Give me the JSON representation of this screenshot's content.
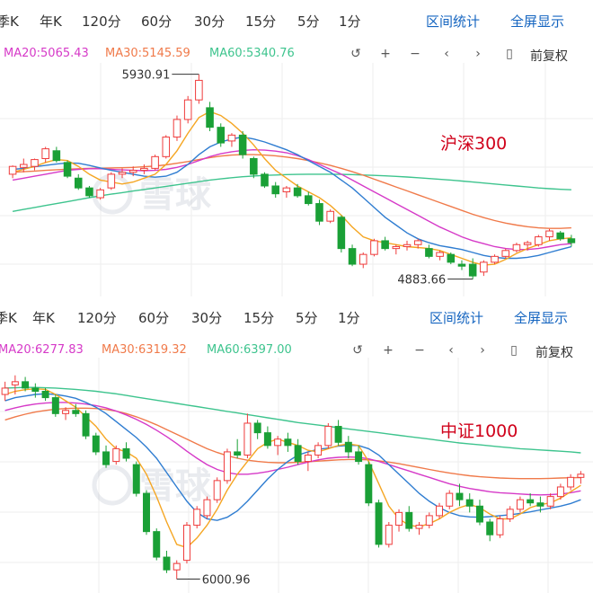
{
  "tabs": [
    "季K",
    "年K",
    "120分",
    "60分",
    "30分",
    "15分",
    "5分",
    "1分"
  ],
  "tools": {
    "range_stats": "区间统计",
    "fullscreen": "全屏显示"
  },
  "controls": {
    "reset_icon": "undo-arrow-icon",
    "zoom_in_icon": "plus-icon",
    "zoom_out_icon": "minus-icon",
    "prev_icon": "chevron-left-icon",
    "next_icon": "chevron-right-icon",
    "candle_icon": "candlestick-icon",
    "adjust_label": "前复权"
  },
  "watermark": "雪球",
  "colors": {
    "up": "#ef3b3b",
    "down": "#1aa036",
    "ma5": "#f5a623",
    "ma10": "#2f7dd1",
    "ma20": "#d63ac8",
    "ma30": "#f07a4a",
    "ma60": "#3ec48e",
    "tab_link": "#1565c0"
  },
  "panels": [
    {
      "ma": {
        "ma20": "MA20:5065.43",
        "ma30": "MA30:5145.59",
        "ma60": "MA60:5340.76"
      },
      "index_label": "沪深300",
      "high_label": "5930.91",
      "low_label": "4883.66"
    },
    {
      "ma": {
        "ma20": "MA20:6277.83",
        "ma30": "MA30:6319.32",
        "ma60": "MA60:6397.00"
      },
      "index_label": "中证1000",
      "low_label": "6000.96"
    }
  ],
  "chart_data": [
    {
      "type": "candlestick",
      "title": "沪深300",
      "y_unit": "index points",
      "high": 5930.91,
      "low": 4883.66,
      "ohlc": [
        [
          5420,
          5465,
          5400,
          5460
        ],
        [
          5455,
          5500,
          5430,
          5470
        ],
        [
          5460,
          5500,
          5440,
          5495
        ],
        [
          5500,
          5560,
          5480,
          5550
        ],
        [
          5540,
          5560,
          5480,
          5490
        ],
        [
          5480,
          5490,
          5400,
          5410
        ],
        [
          5400,
          5420,
          5340,
          5350
        ],
        [
          5350,
          5360,
          5300,
          5310
        ],
        [
          5300,
          5350,
          5290,
          5340
        ],
        [
          5350,
          5430,
          5340,
          5420
        ],
        [
          5420,
          5450,
          5400,
          5430
        ],
        [
          5430,
          5460,
          5410,
          5440
        ],
        [
          5440,
          5470,
          5420,
          5450
        ],
        [
          5450,
          5520,
          5440,
          5510
        ],
        [
          5510,
          5620,
          5500,
          5610
        ],
        [
          5610,
          5720,
          5590,
          5700
        ],
        [
          5700,
          5820,
          5680,
          5800
        ],
        [
          5800,
          5930.91,
          5780,
          5900
        ],
        [
          5760,
          5790,
          5640,
          5660
        ],
        [
          5660,
          5680,
          5560,
          5580
        ],
        [
          5590,
          5630,
          5560,
          5620
        ],
        [
          5620,
          5640,
          5500,
          5520
        ],
        [
          5500,
          5510,
          5400,
          5420
        ],
        [
          5420,
          5430,
          5350,
          5360
        ],
        [
          5360,
          5380,
          5300,
          5320
        ],
        [
          5330,
          5360,
          5300,
          5350
        ],
        [
          5350,
          5370,
          5300,
          5310
        ],
        [
          5310,
          5330,
          5260,
          5270
        ],
        [
          5270,
          5290,
          5160,
          5180
        ],
        [
          5180,
          5240,
          5170,
          5230
        ],
        [
          5200,
          5210,
          5020,
          5040
        ],
        [
          5040,
          5060,
          4950,
          4960
        ],
        [
          4960,
          5020,
          4940,
          5010
        ],
        [
          5010,
          5090,
          5000,
          5080
        ],
        [
          5080,
          5100,
          5030,
          5040
        ],
        [
          5040,
          5060,
          5010,
          5050
        ],
        [
          5050,
          5080,
          5030,
          5060
        ],
        [
          5060,
          5090,
          5040,
          5080
        ],
        [
          5040,
          5060,
          4990,
          5000
        ],
        [
          5000,
          5030,
          4980,
          5020
        ],
        [
          5010,
          5020,
          4960,
          4970
        ],
        [
          4960,
          4980,
          4930,
          4950
        ],
        [
          4960,
          4990,
          4883.66,
          4900
        ],
        [
          4920,
          4980,
          4900,
          4970
        ],
        [
          4970,
          5010,
          4960,
          5000
        ],
        [
          5000,
          5040,
          4990,
          5030
        ],
        [
          5030,
          5070,
          5020,
          5060
        ],
        [
          5060,
          5080,
          5030,
          5070
        ],
        [
          5060,
          5110,
          5050,
          5100
        ],
        [
          5100,
          5140,
          5080,
          5130
        ],
        [
          5120,
          5130,
          5080,
          5090
        ],
        [
          5090,
          5110,
          5050,
          5070
        ]
      ],
      "ma5": [
        5430,
        5445,
        5460,
        5480,
        5495,
        5490,
        5460,
        5420,
        5390,
        5380,
        5370,
        5380,
        5400,
        5420,
        5470,
        5540,
        5630,
        5710,
        5740,
        5720,
        5680,
        5630,
        5570,
        5500,
        5440,
        5400,
        5360,
        5330,
        5300,
        5260,
        5210,
        5150,
        5100,
        5080,
        5070,
        5060,
        5050,
        5045,
        5040,
        5030,
        5010,
        4990,
        4970,
        4955,
        4960,
        4985,
        5015,
        5040,
        5060,
        5080,
        5090,
        5095
      ],
      "ma10": [
        5445,
        5450,
        5458,
        5465,
        5472,
        5478,
        5476,
        5465,
        5452,
        5440,
        5430,
        5420,
        5410,
        5405,
        5410,
        5430,
        5470,
        5520,
        5560,
        5585,
        5600,
        5610,
        5600,
        5585,
        5565,
        5545,
        5520,
        5490,
        5460,
        5430,
        5390,
        5350,
        5300,
        5250,
        5200,
        5160,
        5120,
        5090,
        5070,
        5055,
        5045,
        5035,
        5020,
        5005,
        4995,
        4990,
        4990,
        4995,
        5005,
        5020,
        5035,
        5050
      ],
      "ma20": [
        5390,
        5400,
        5410,
        5420,
        5430,
        5440,
        5445,
        5448,
        5448,
        5445,
        5442,
        5440,
        5438,
        5440,
        5445,
        5455,
        5470,
        5490,
        5510,
        5525,
        5535,
        5542,
        5545,
        5543,
        5538,
        5530,
        5515,
        5495,
        5470,
        5445,
        5420,
        5390,
        5360,
        5330,
        5300,
        5270,
        5240,
        5210,
        5180,
        5150,
        5125,
        5100,
        5080,
        5065,
        5050,
        5040,
        5035,
        5035,
        5040,
        5050,
        5060,
        5065
      ],
      "ma30": [
        5430,
        5433,
        5436,
        5440,
        5443,
        5446,
        5448,
        5450,
        5451,
        5452,
        5453,
        5455,
        5458,
        5462,
        5468,
        5476,
        5485,
        5495,
        5505,
        5513,
        5518,
        5520,
        5520,
        5518,
        5514,
        5508,
        5500,
        5490,
        5478,
        5465,
        5450,
        5433,
        5415,
        5395,
        5375,
        5355,
        5335,
        5315,
        5295,
        5275,
        5255,
        5235,
        5215,
        5198,
        5183,
        5170,
        5160,
        5152,
        5146,
        5143,
        5143,
        5146
      ],
      "ma60": [
        5230,
        5240,
        5250,
        5260,
        5270,
        5280,
        5290,
        5300,
        5310,
        5318,
        5326,
        5334,
        5342,
        5350,
        5358,
        5366,
        5374,
        5382,
        5390,
        5396,
        5402,
        5407,
        5411,
        5414,
        5416,
        5418,
        5419,
        5420,
        5420,
        5420,
        5419,
        5418,
        5416,
        5414,
        5412,
        5409,
        5406,
        5402,
        5398,
        5394,
        5390,
        5385,
        5380,
        5375,
        5370,
        5365,
        5360,
        5355,
        5350,
        5346,
        5343,
        5340.76
      ]
    },
    {
      "type": "candlestick",
      "title": "中证1000",
      "y_unit": "index points",
      "low": 6000.96,
      "ohlc": [
        [
          6580,
          6620,
          6560,
          6600
        ],
        [
          6610,
          6640,
          6580,
          6620
        ],
        [
          6620,
          6635,
          6590,
          6600
        ],
        [
          6600,
          6615,
          6570,
          6590
        ],
        [
          6590,
          6600,
          6560,
          6570
        ],
        [
          6570,
          6580,
          6510,
          6520
        ],
        [
          6520,
          6540,
          6500,
          6530
        ],
        [
          6530,
          6550,
          6510,
          6520
        ],
        [
          6520,
          6530,
          6440,
          6450
        ],
        [
          6450,
          6460,
          6390,
          6400
        ],
        [
          6400,
          6420,
          6350,
          6360
        ],
        [
          6370,
          6420,
          6360,
          6410
        ],
        [
          6410,
          6430,
          6370,
          6380
        ],
        [
          6360,
          6370,
          6260,
          6270
        ],
        [
          6270,
          6280,
          6140,
          6150
        ],
        [
          6150,
          6160,
          6060,
          6070
        ],
        [
          6070,
          6090,
          6020,
          6030
        ],
        [
          6030,
          6060,
          6000.96,
          6050
        ],
        [
          6060,
          6180,
          6050,
          6170
        ],
        [
          6170,
          6230,
          6160,
          6220
        ],
        [
          6200,
          6260,
          6190,
          6250
        ],
        [
          6250,
          6320,
          6240,
          6310
        ],
        [
          6310,
          6410,
          6300,
          6400
        ],
        [
          6400,
          6440,
          6380,
          6390
        ],
        [
          6390,
          6520,
          6380,
          6490
        ],
        [
          6490,
          6500,
          6440,
          6460
        ],
        [
          6460,
          6480,
          6410,
          6420
        ],
        [
          6420,
          6450,
          6390,
          6440
        ],
        [
          6440,
          6460,
          6400,
          6420
        ],
        [
          6420,
          6440,
          6360,
          6370
        ],
        [
          6370,
          6400,
          6340,
          6390
        ],
        [
          6390,
          6430,
          6380,
          6420
        ],
        [
          6420,
          6490,
          6410,
          6480
        ],
        [
          6480,
          6500,
          6420,
          6430
        ],
        [
          6430,
          6450,
          6380,
          6400
        ],
        [
          6400,
          6420,
          6360,
          6370
        ],
        [
          6360,
          6370,
          6230,
          6240
        ],
        [
          6240,
          6250,
          6100,
          6110
        ],
        [
          6110,
          6180,
          6100,
          6170
        ],
        [
          6170,
          6220,
          6150,
          6210
        ],
        [
          6210,
          6230,
          6150,
          6160
        ],
        [
          6160,
          6180,
          6140,
          6170
        ],
        [
          6170,
          6210,
          6160,
          6200
        ],
        [
          6200,
          6240,
          6190,
          6230
        ],
        [
          6230,
          6280,
          6220,
          6270
        ],
        [
          6270,
          6300,
          6230,
          6250
        ],
        [
          6250,
          6270,
          6210,
          6230
        ],
        [
          6230,
          6250,
          6170,
          6180
        ],
        [
          6180,
          6190,
          6120,
          6140
        ],
        [
          6140,
          6200,
          6130,
          6190
        ],
        [
          6190,
          6230,
          6180,
          6220
        ],
        [
          6220,
          6260,
          6210,
          6250
        ],
        [
          6250,
          6270,
          6230,
          6240
        ],
        [
          6240,
          6260,
          6210,
          6230
        ],
        [
          6230,
          6270,
          6220,
          6260
        ],
        [
          6260,
          6300,
          6250,
          6290
        ],
        [
          6290,
          6330,
          6280,
          6320
        ],
        [
          6320,
          6340,
          6300,
          6330
        ]
      ],
      "ma5": [
        6580,
        6590,
        6595,
        6598,
        6596,
        6580,
        6560,
        6540,
        6510,
        6480,
        6440,
        6410,
        6400,
        6380,
        6330,
        6260,
        6180,
        6110,
        6100,
        6130,
        6170,
        6220,
        6280,
        6330,
        6370,
        6410,
        6430,
        6440,
        6430,
        6420,
        6405,
        6400,
        6410,
        6420,
        6425,
        6420,
        6370,
        6300,
        6230,
        6190,
        6170,
        6165,
        6175,
        6190,
        6210,
        6225,
        6235,
        6225,
        6205,
        6190,
        6190,
        6205,
        6225,
        6235,
        6240,
        6255,
        6275,
        6295
      ],
      "ma10": [
        6560,
        6570,
        6575,
        6580,
        6582,
        6580,
        6575,
        6568,
        6555,
        6540,
        6520,
        6495,
        6470,
        6445,
        6415,
        6380,
        6335,
        6290,
        6245,
        6210,
        6190,
        6185,
        6195,
        6215,
        6245,
        6280,
        6315,
        6345,
        6370,
        6390,
        6400,
        6408,
        6412,
        6418,
        6420,
        6420,
        6410,
        6390,
        6360,
        6330,
        6300,
        6270,
        6245,
        6225,
        6210,
        6200,
        6196,
        6195,
        6197,
        6200,
        6203,
        6207,
        6212,
        6218,
        6224,
        6230,
        6238,
        6250
      ],
      "ma20": [
        6530,
        6538,
        6545,
        6550,
        6553,
        6555,
        6555,
        6553,
        6550,
        6545,
        6538,
        6528,
        6516,
        6502,
        6486,
        6468,
        6448,
        6426,
        6402,
        6380,
        6360,
        6345,
        6335,
        6330,
        6330,
        6333,
        6338,
        6345,
        6352,
        6360,
        6368,
        6375,
        6380,
        6383,
        6384,
        6383,
        6378,
        6370,
        6360,
        6350,
        6340,
        6330,
        6320,
        6310,
        6300,
        6292,
        6285,
        6280,
        6275,
        6272,
        6270,
        6268,
        6266,
        6265,
        6266,
        6268,
        6272,
        6277.83
      ],
      "ma30": [
        6500,
        6510,
        6518,
        6525,
        6530,
        6534,
        6536,
        6537,
        6537,
        6536,
        6533,
        6528,
        6520,
        6510,
        6498,
        6485,
        6470,
        6455,
        6440,
        6425,
        6410,
        6398,
        6388,
        6380,
        6374,
        6370,
        6367,
        6366,
        6366,
        6367,
        6369,
        6371,
        6373,
        6375,
        6376,
        6376,
        6375,
        6372,
        6368,
        6363,
        6357,
        6351,
        6345,
        6339,
        6334,
        6329,
        6325,
        6322,
        6320,
        6318,
        6317,
        6316,
        6316,
        6316,
        6317,
        6318,
        6319,
        6319.32
      ],
      "ma60": [
        6600,
        6601,
        6602,
        6602,
        6601,
        6600,
        6598,
        6596,
        6593,
        6590,
        6586,
        6582,
        6577,
        6572,
        6567,
        6562,
        6557,
        6552,
        6547,
        6542,
        6537,
        6532,
        6527,
        6522,
        6517,
        6512,
        6507,
        6502,
        6497,
        6492,
        6488,
        6484,
        6480,
        6476,
        6472,
        6468,
        6464,
        6460,
        6456,
        6452,
        6448,
        6444,
        6440,
        6436,
        6432,
        6428,
        6425,
        6422,
        6419,
        6416,
        6413,
        6410,
        6408,
        6406,
        6404,
        6402,
        6400,
        6397.0
      ]
    }
  ]
}
